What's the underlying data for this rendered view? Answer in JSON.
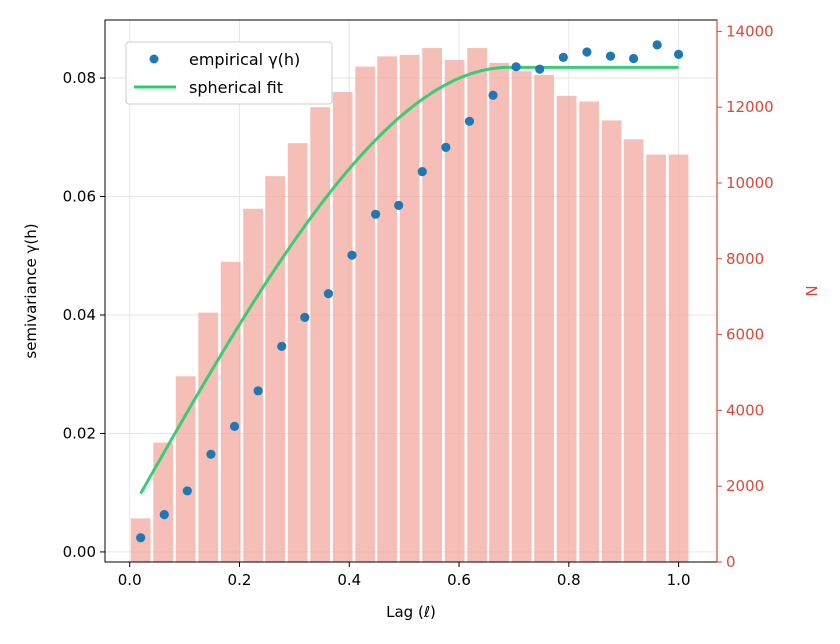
{
  "chart_data": {
    "type": "bar+scatter+line",
    "xlabel": "Lag (ℓ)",
    "ylabel_left": "semivariance γ(h)",
    "ylabel_right": "N",
    "xlim": [
      -0.045,
      1.07
    ],
    "ylim_left": [
      -0.0017,
      0.0898
    ],
    "ylim_right": [
      0,
      14300
    ],
    "x_ticks": [
      0.0,
      0.2,
      0.4,
      0.6,
      0.8,
      1.0
    ],
    "x_tick_labels": [
      "0.0",
      "0.2",
      "0.4",
      "0.6",
      "0.8",
      "1.0"
    ],
    "y_left_ticks": [
      0.0,
      0.02,
      0.04,
      0.06,
      0.08
    ],
    "y_left_tick_labels": [
      "0.00",
      "0.02",
      "0.04",
      "0.06",
      "0.08"
    ],
    "y_right_ticks": [
      0,
      2000,
      4000,
      6000,
      8000,
      10000,
      12000,
      14000
    ],
    "y_right_tick_labels": [
      "0",
      "2000",
      "4000",
      "6000",
      "8000",
      "10000",
      "12000",
      "14000"
    ],
    "grid": true,
    "legend_position": "top-left",
    "legend": [
      {
        "label": "empirical γ(h)",
        "kind": "marker",
        "color": "#1f77b4"
      },
      {
        "label": "spherical fit",
        "kind": "line",
        "color": "#2ecc71"
      }
    ],
    "bars": {
      "name": "N",
      "color": "#f1a9a0",
      "width": 0.036,
      "x": [
        0.02,
        0.061,
        0.102,
        0.143,
        0.184,
        0.225,
        0.265,
        0.306,
        0.347,
        0.388,
        0.429,
        0.469,
        0.51,
        0.551,
        0.592,
        0.633,
        0.673,
        0.714,
        0.755,
        0.796,
        0.837,
        0.878,
        0.918,
        0.959,
        1.0
      ],
      "values": [
        1150,
        3150,
        4900,
        6580,
        7920,
        9320,
        10180,
        11050,
        12000,
        12400,
        13070,
        13340,
        13380,
        13560,
        13250,
        13560,
        13170,
        12950,
        12850,
        12300,
        12150,
        11650,
        11150,
        10750,
        10750
      ]
    },
    "scatter": {
      "name": "empirical γ(h)",
      "color": "#1f77b4",
      "x": [
        0.02,
        0.063,
        0.105,
        0.148,
        0.191,
        0.234,
        0.277,
        0.319,
        0.362,
        0.405,
        0.448,
        0.49,
        0.533,
        0.576,
        0.619,
        0.662,
        0.704,
        0.747,
        0.79,
        0.833,
        0.876,
        0.918,
        0.961,
        1.0
      ],
      "values": [
        0.0024,
        0.0063,
        0.0103,
        0.0165,
        0.0212,
        0.0272,
        0.0347,
        0.0396,
        0.0436,
        0.0501,
        0.057,
        0.0585,
        0.0642,
        0.0683,
        0.0727,
        0.0771,
        0.0819,
        0.0815,
        0.0835,
        0.0844,
        0.0837,
        0.0833,
        0.0856,
        0.084
      ]
    },
    "fit": {
      "name": "spherical fit",
      "color": "#2ecc71",
      "model": "spherical",
      "nugget": 0.0066,
      "sill": 0.0752,
      "range": 0.69,
      "x_start": 0.02,
      "x_end": 1.0
    }
  }
}
